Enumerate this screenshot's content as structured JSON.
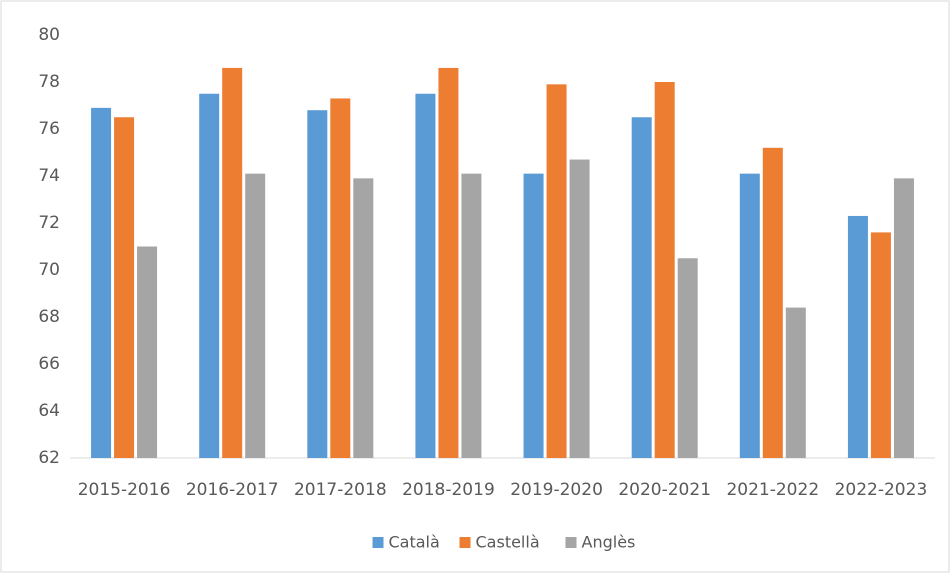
{
  "chart_data": {
    "type": "bar",
    "categories": [
      "2015-2016",
      "2016-2017",
      "2017-2018",
      "2018-2019",
      "2019-2020",
      "2020-2021",
      "2021-2022",
      "2022-2023"
    ],
    "series": [
      {
        "name": "Català",
        "color": "#5b9bd5",
        "values": [
          76.9,
          77.5,
          76.8,
          77.5,
          74.1,
          76.5,
          74.1,
          72.3
        ]
      },
      {
        "name": "Castellà",
        "color": "#ed7d31",
        "values": [
          76.5,
          78.6,
          77.3,
          78.6,
          77.9,
          78.0,
          75.2,
          71.6
        ]
      },
      {
        "name": "Anglès",
        "color": "#a5a5a5",
        "values": [
          71.0,
          74.1,
          73.9,
          74.1,
          74.7,
          70.5,
          68.4,
          73.9
        ]
      }
    ],
    "ylim": [
      62,
      80
    ],
    "yticks": [
      62,
      64,
      66,
      68,
      70,
      72,
      74,
      76,
      78,
      80
    ],
    "grid": false,
    "legend": "bottom"
  }
}
